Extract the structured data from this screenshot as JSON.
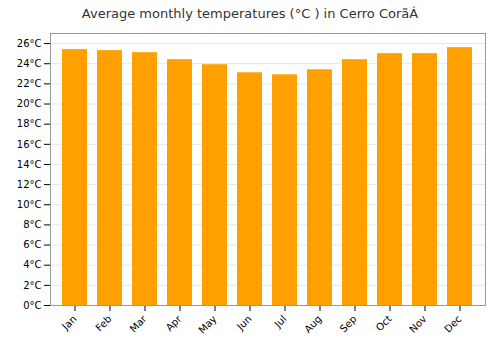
{
  "chart_data": {
    "type": "bar",
    "title": "Average monthly temperatures (°C ) in Cerro CorãÁ",
    "categories": [
      "Jan",
      "Feb",
      "Mar",
      "Apr",
      "May",
      "Jun",
      "Jul",
      "Aug",
      "Sep",
      "Oct",
      "Nov",
      "Dec"
    ],
    "values": [
      25.4,
      25.3,
      25.1,
      24.4,
      23.9,
      23.1,
      22.9,
      23.4,
      24.4,
      25.0,
      25.0,
      25.6
    ],
    "color": "#FFA000",
    "ylim": [
      0,
      27
    ],
    "yticks": [
      {
        "value": 0,
        "label": "0°C"
      },
      {
        "value": 2,
        "label": "2°C"
      },
      {
        "value": 4,
        "label": "4°C"
      },
      {
        "value": 6,
        "label": "6°C"
      },
      {
        "value": 8,
        "label": "8°C"
      },
      {
        "value": 10,
        "label": "10°C"
      },
      {
        "value": 12,
        "label": "12°C"
      },
      {
        "value": 14,
        "label": "14°C"
      },
      {
        "value": 16,
        "label": "16°C"
      },
      {
        "value": 18,
        "label": "18°C"
      },
      {
        "value": 20,
        "label": "20°C"
      },
      {
        "value": 22,
        "label": "22°C"
      },
      {
        "value": 24,
        "label": "24°C"
      },
      {
        "value": 26,
        "label": "26°C"
      }
    ],
    "grid": true
  }
}
